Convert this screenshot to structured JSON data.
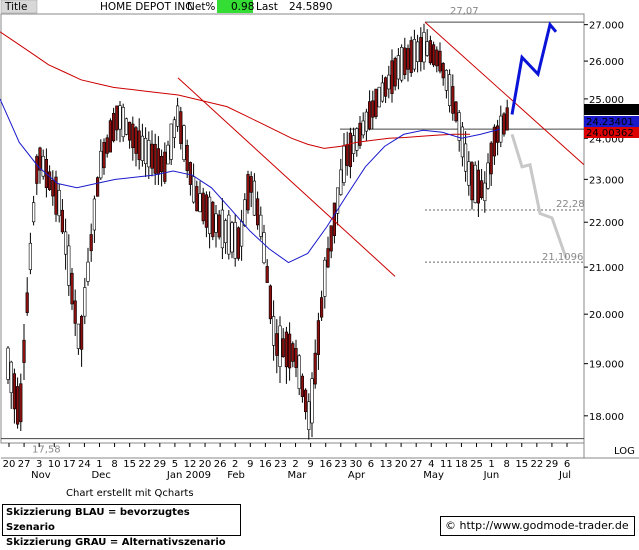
{
  "header": {
    "title": "Title",
    "symbol": "HOME DEPOT INC",
    "netpct_label": "Net%",
    "netpct_value": "0.98",
    "last_label": "Last",
    "last_value": "24.5890"
  },
  "chart_data": {
    "type": "bar",
    "subtype": "ohlc-candlestick",
    "y_axis": {
      "min": 17.5,
      "max": 27.3,
      "position": "right",
      "ticks": [
        "18.000",
        "19.000",
        "20.000",
        "21.000",
        "22.000",
        "23.000",
        "24.000",
        "25.000",
        "26.000",
        "27.000"
      ],
      "scale_label": "LOG"
    },
    "x_axis": {
      "day_labels": [
        "20",
        "27",
        "3",
        "10",
        "17",
        "24",
        "1",
        "8",
        "15",
        "22",
        "29",
        "5",
        "12",
        "20",
        "26",
        "2",
        "9",
        "16",
        "23",
        "2",
        "9",
        "16",
        "23",
        "30",
        "6",
        "13",
        "20",
        "27",
        "4",
        "11",
        "18",
        "25",
        "1",
        "8",
        "15",
        "22",
        "29",
        "6"
      ],
      "month_labels": [
        "Nov",
        "Dec",
        "Jan 2009",
        "Feb",
        "Mar",
        "Apr",
        "May",
        "Jun",
        "Jul"
      ]
    },
    "price_badges": [
      {
        "value": "24.5890",
        "color": "#000000",
        "text_color": "#ffffff"
      },
      {
        "value": "24.23401",
        "color": "#1a1acc",
        "text_color": "#ffffff"
      },
      {
        "value": "24.00362",
        "color": "#dd0000",
        "text_color": "#000000"
      }
    ],
    "annotations": [
      {
        "text": "27,07",
        "value": 27.07
      },
      {
        "text": "17,58",
        "value": 17.58
      },
      {
        "text": "22,28",
        "value": 22.28
      },
      {
        "text": "21,1096",
        "value": 21.1096
      }
    ],
    "moving_averages": [
      {
        "color": "#cc0000",
        "values": [
          26.8,
          26.5,
          26.2,
          25.9,
          25.7,
          25.5,
          25.4,
          25.3,
          25.25,
          25.2,
          25.15,
          25.1,
          25.0,
          24.9,
          24.8,
          24.6,
          24.4,
          24.2,
          24.0,
          23.85,
          23.75,
          23.8,
          23.9,
          23.95,
          24.0,
          24.02,
          24.05,
          24.08,
          24.1,
          24.1
        ]
      },
      {
        "color": "#1a1acc",
        "values": [
          25.0,
          23.9,
          23.3,
          22.9,
          22.8,
          22.9,
          23.0,
          23.05,
          23.1,
          23.2,
          23.1,
          22.8,
          22.3,
          21.8,
          21.4,
          21.1,
          21.3,
          21.9,
          22.6,
          23.3,
          23.8,
          24.1,
          24.2,
          24.15,
          24.0,
          24.1,
          24.23
        ]
      }
    ],
    "trendlines": [
      {
        "color": "#cc0000",
        "from": [
          0,
          25.55
        ],
        "to": [
          0,
          20.8
        ]
      },
      {
        "color": "#cc0000",
        "from": [
          0,
          27.07
        ],
        "to": [
          0,
          23.35
        ]
      }
    ],
    "scenarios": [
      {
        "name": "Skizzierung BLAU = bevorzugtes Szenario",
        "color": "#0a14d8",
        "values": [
          24.6,
          26.1,
          25.65,
          27.0,
          26.8
        ]
      },
      {
        "name": "Skizzierung GRAU = Alternativszenario",
        "color": "#c8c8c8",
        "values": [
          24.1,
          23.3,
          23.35,
          22.2,
          22.1,
          21.2
        ]
      }
    ],
    "support_levels": [
      24.23,
      22.28,
      21.1096,
      17.58,
      27.07
    ]
  },
  "footer": {
    "note": "Chart erstellt mit Qcharts",
    "legend_blue": "Skizzierung BLAU = bevorzugtes Szenario",
    "legend_grey": "Skizzierung GRAU = Alternativszenario",
    "copyright": "©",
    "website": "http://www.godmode-trader.de"
  }
}
